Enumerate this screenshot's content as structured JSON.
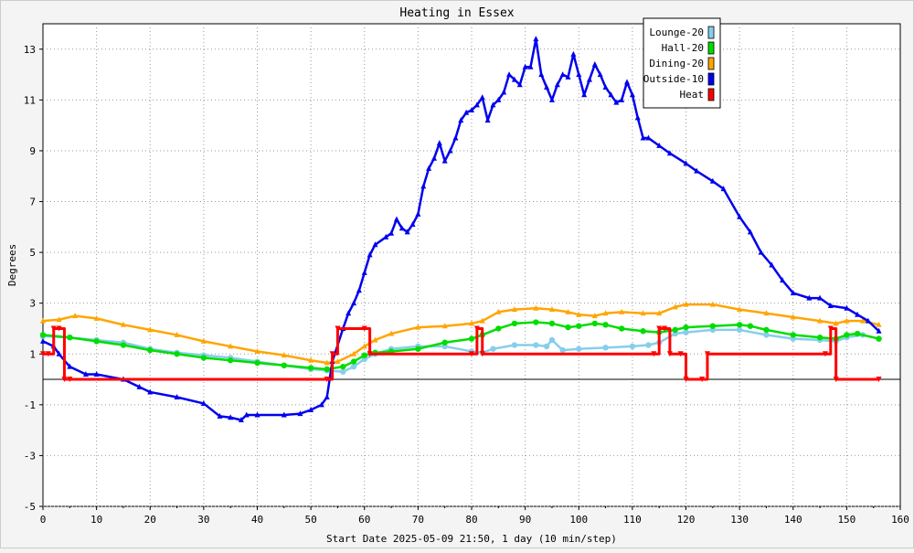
{
  "chart_data": {
    "type": "line",
    "title": "Heating in Essex",
    "xlabel": "Start Date 2025-05-09 21:50, 1 day (10 min/step)",
    "ylabel": "Degrees",
    "xlim": [
      0,
      160
    ],
    "ylim": [
      -5,
      14
    ],
    "x_ticks": [
      0,
      10,
      20,
      30,
      40,
      50,
      60,
      70,
      80,
      90,
      100,
      110,
      120,
      130,
      140,
      150,
      160
    ],
    "y_ticks": [
      -5,
      -3,
      -1,
      1,
      3,
      5,
      7,
      9,
      11,
      13
    ],
    "grid": true,
    "legend_position": "top-right",
    "colors": {
      "Lounge-20": "#87ceeb",
      "Hall-20": "#00dd00",
      "Dining-20": "#ffa500",
      "Outside-10": "#0000ee",
      "Heat": "#ff0000"
    },
    "series": [
      {
        "name": "Lounge-20",
        "marker": "circle",
        "points": [
          [
            0,
            1.7
          ],
          [
            5,
            1.65
          ],
          [
            10,
            1.55
          ],
          [
            15,
            1.45
          ],
          [
            20,
            1.2
          ],
          [
            25,
            1.05
          ],
          [
            30,
            0.95
          ],
          [
            35,
            0.85
          ],
          [
            40,
            0.7
          ],
          [
            45,
            0.55
          ],
          [
            50,
            0.4
          ],
          [
            53,
            0.35
          ],
          [
            56,
            0.3
          ],
          [
            58,
            0.5
          ],
          [
            60,
            0.8
          ],
          [
            62,
            1.0
          ],
          [
            65,
            1.2
          ],
          [
            70,
            1.3
          ],
          [
            75,
            1.3
          ],
          [
            80,
            1.1
          ],
          [
            82,
            1.05
          ],
          [
            84,
            1.2
          ],
          [
            88,
            1.35
          ],
          [
            92,
            1.35
          ],
          [
            94,
            1.3
          ],
          [
            95,
            1.55
          ],
          [
            97,
            1.15
          ],
          [
            100,
            1.2
          ],
          [
            105,
            1.25
          ],
          [
            110,
            1.3
          ],
          [
            113,
            1.35
          ],
          [
            115,
            1.45
          ],
          [
            118,
            1.8
          ],
          [
            120,
            1.85
          ],
          [
            125,
            1.95
          ],
          [
            130,
            1.95
          ],
          [
            135,
            1.75
          ],
          [
            140,
            1.6
          ],
          [
            145,
            1.55
          ],
          [
            148,
            1.5
          ],
          [
            150,
            1.65
          ],
          [
            153,
            1.75
          ],
          [
            156,
            1.6
          ]
        ]
      },
      {
        "name": "Hall-20",
        "marker": "circle",
        "points": [
          [
            0,
            1.75
          ],
          [
            5,
            1.65
          ],
          [
            10,
            1.5
          ],
          [
            15,
            1.35
          ],
          [
            20,
            1.15
          ],
          [
            25,
            1.0
          ],
          [
            30,
            0.85
          ],
          [
            35,
            0.75
          ],
          [
            40,
            0.65
          ],
          [
            45,
            0.55
          ],
          [
            50,
            0.45
          ],
          [
            53,
            0.4
          ],
          [
            56,
            0.5
          ],
          [
            58,
            0.7
          ],
          [
            60,
            0.95
          ],
          [
            62,
            1.05
          ],
          [
            65,
            1.1
          ],
          [
            70,
            1.2
          ],
          [
            75,
            1.45
          ],
          [
            80,
            1.6
          ],
          [
            82,
            1.75
          ],
          [
            85,
            2.0
          ],
          [
            88,
            2.2
          ],
          [
            92,
            2.25
          ],
          [
            95,
            2.2
          ],
          [
            98,
            2.05
          ],
          [
            100,
            2.1
          ],
          [
            103,
            2.2
          ],
          [
            105,
            2.15
          ],
          [
            108,
            2.0
          ],
          [
            112,
            1.9
          ],
          [
            115,
            1.85
          ],
          [
            118,
            1.95
          ],
          [
            120,
            2.05
          ],
          [
            125,
            2.1
          ],
          [
            130,
            2.15
          ],
          [
            132,
            2.1
          ],
          [
            135,
            1.95
          ],
          [
            140,
            1.75
          ],
          [
            145,
            1.65
          ],
          [
            148,
            1.6
          ],
          [
            150,
            1.75
          ],
          [
            152,
            1.8
          ],
          [
            156,
            1.6
          ]
        ]
      },
      {
        "name": "Dining-20",
        "marker": "triangle",
        "points": [
          [
            0,
            2.3
          ],
          [
            3,
            2.35
          ],
          [
            6,
            2.5
          ],
          [
            10,
            2.4
          ],
          [
            15,
            2.15
          ],
          [
            20,
            1.95
          ],
          [
            25,
            1.75
          ],
          [
            30,
            1.5
          ],
          [
            35,
            1.3
          ],
          [
            40,
            1.1
          ],
          [
            45,
            0.95
          ],
          [
            50,
            0.75
          ],
          [
            53,
            0.65
          ],
          [
            55,
            0.7
          ],
          [
            58,
            1.0
          ],
          [
            60,
            1.3
          ],
          [
            62,
            1.55
          ],
          [
            65,
            1.8
          ],
          [
            70,
            2.05
          ],
          [
            75,
            2.1
          ],
          [
            80,
            2.2
          ],
          [
            82,
            2.3
          ],
          [
            85,
            2.65
          ],
          [
            88,
            2.75
          ],
          [
            92,
            2.8
          ],
          [
            95,
            2.75
          ],
          [
            98,
            2.65
          ],
          [
            100,
            2.55
          ],
          [
            103,
            2.5
          ],
          [
            105,
            2.6
          ],
          [
            108,
            2.65
          ],
          [
            112,
            2.6
          ],
          [
            115,
            2.6
          ],
          [
            118,
            2.85
          ],
          [
            120,
            2.95
          ],
          [
            125,
            2.95
          ],
          [
            130,
            2.75
          ],
          [
            135,
            2.6
          ],
          [
            140,
            2.45
          ],
          [
            145,
            2.3
          ],
          [
            148,
            2.2
          ],
          [
            150,
            2.3
          ],
          [
            153,
            2.3
          ],
          [
            156,
            2.15
          ]
        ]
      },
      {
        "name": "Outside-10",
        "marker": "triangle",
        "points": [
          [
            0,
            1.5
          ],
          [
            2,
            1.3
          ],
          [
            3,
            1.0
          ],
          [
            5,
            0.5
          ],
          [
            8,
            0.2
          ],
          [
            10,
            0.2
          ],
          [
            15,
            0.0
          ],
          [
            18,
            -0.3
          ],
          [
            20,
            -0.5
          ],
          [
            25,
            -0.7
          ],
          [
            30,
            -0.95
          ],
          [
            33,
            -1.45
          ],
          [
            35,
            -1.5
          ],
          [
            37,
            -1.6
          ],
          [
            38,
            -1.4
          ],
          [
            40,
            -1.4
          ],
          [
            45,
            -1.4
          ],
          [
            48,
            -1.35
          ],
          [
            50,
            -1.2
          ],
          [
            52,
            -1.0
          ],
          [
            53,
            -0.7
          ],
          [
            54,
            0.7
          ],
          [
            56,
            2.0
          ],
          [
            57,
            2.6
          ],
          [
            58,
            3.0
          ],
          [
            59,
            3.5
          ],
          [
            60,
            4.2
          ],
          [
            61,
            4.9
          ],
          [
            62,
            5.3
          ],
          [
            64,
            5.6
          ],
          [
            65,
            5.75
          ],
          [
            66,
            6.3
          ],
          [
            67,
            5.95
          ],
          [
            68,
            5.8
          ],
          [
            69,
            6.1
          ],
          [
            70,
            6.5
          ],
          [
            71,
            7.6
          ],
          [
            72,
            8.3
          ],
          [
            73,
            8.7
          ],
          [
            74,
            9.3
          ],
          [
            75,
            8.6
          ],
          [
            76,
            9.0
          ],
          [
            77,
            9.5
          ],
          [
            78,
            10.2
          ],
          [
            79,
            10.5
          ],
          [
            80,
            10.6
          ],
          [
            81,
            10.8
          ],
          [
            82,
            11.1
          ],
          [
            83,
            10.2
          ],
          [
            84,
            10.8
          ],
          [
            85,
            11.0
          ],
          [
            86,
            11.3
          ],
          [
            87,
            12.0
          ],
          [
            88,
            11.8
          ],
          [
            89,
            11.6
          ],
          [
            90,
            12.3
          ],
          [
            91,
            12.3
          ],
          [
            92,
            13.4
          ],
          [
            93,
            12.0
          ],
          [
            94,
            11.5
          ],
          [
            95,
            11.0
          ],
          [
            96,
            11.6
          ],
          [
            97,
            12.0
          ],
          [
            98,
            11.9
          ],
          [
            99,
            12.8
          ],
          [
            100,
            12.0
          ],
          [
            101,
            11.2
          ],
          [
            102,
            11.8
          ],
          [
            103,
            12.4
          ],
          [
            104,
            12.0
          ],
          [
            105,
            11.5
          ],
          [
            106,
            11.2
          ],
          [
            107,
            10.9
          ],
          [
            108,
            11.0
          ],
          [
            109,
            11.7
          ],
          [
            110,
            11.2
          ],
          [
            111,
            10.3
          ],
          [
            112,
            9.5
          ],
          [
            113,
            9.5
          ],
          [
            115,
            9.2
          ],
          [
            117,
            8.9
          ],
          [
            120,
            8.5
          ],
          [
            122,
            8.2
          ],
          [
            125,
            7.8
          ],
          [
            127,
            7.5
          ],
          [
            130,
            6.4
          ],
          [
            132,
            5.8
          ],
          [
            134,
            5.0
          ],
          [
            136,
            4.5
          ],
          [
            138,
            3.9
          ],
          [
            140,
            3.4
          ],
          [
            143,
            3.2
          ],
          [
            145,
            3.2
          ],
          [
            147,
            2.9
          ],
          [
            150,
            2.8
          ],
          [
            152,
            2.55
          ],
          [
            154,
            2.3
          ],
          [
            156,
            1.9
          ]
        ]
      },
      {
        "name": "Heat",
        "marker": "triangle-down",
        "points": [
          [
            0,
            1.0
          ],
          [
            1,
            1.0
          ],
          [
            2,
            2.0
          ],
          [
            3,
            2.0
          ],
          [
            4,
            0.0
          ],
          [
            5,
            0.0
          ],
          [
            53,
            0.0
          ],
          [
            54,
            1.0
          ],
          [
            55,
            2.0
          ],
          [
            60,
            2.0
          ],
          [
            61,
            1.0
          ],
          [
            80,
            1.0
          ],
          [
            81,
            2.0
          ],
          [
            82,
            1.0
          ],
          [
            114,
            1.0
          ],
          [
            115,
            2.0
          ],
          [
            116,
            2.0
          ],
          [
            117,
            1.0
          ],
          [
            119,
            1.0
          ],
          [
            120,
            0.0
          ],
          [
            123,
            0.0
          ],
          [
            124,
            1.0
          ],
          [
            146,
            1.0
          ],
          [
            147,
            2.0
          ],
          [
            148,
            0.0
          ],
          [
            156,
            0.0
          ]
        ]
      }
    ]
  }
}
